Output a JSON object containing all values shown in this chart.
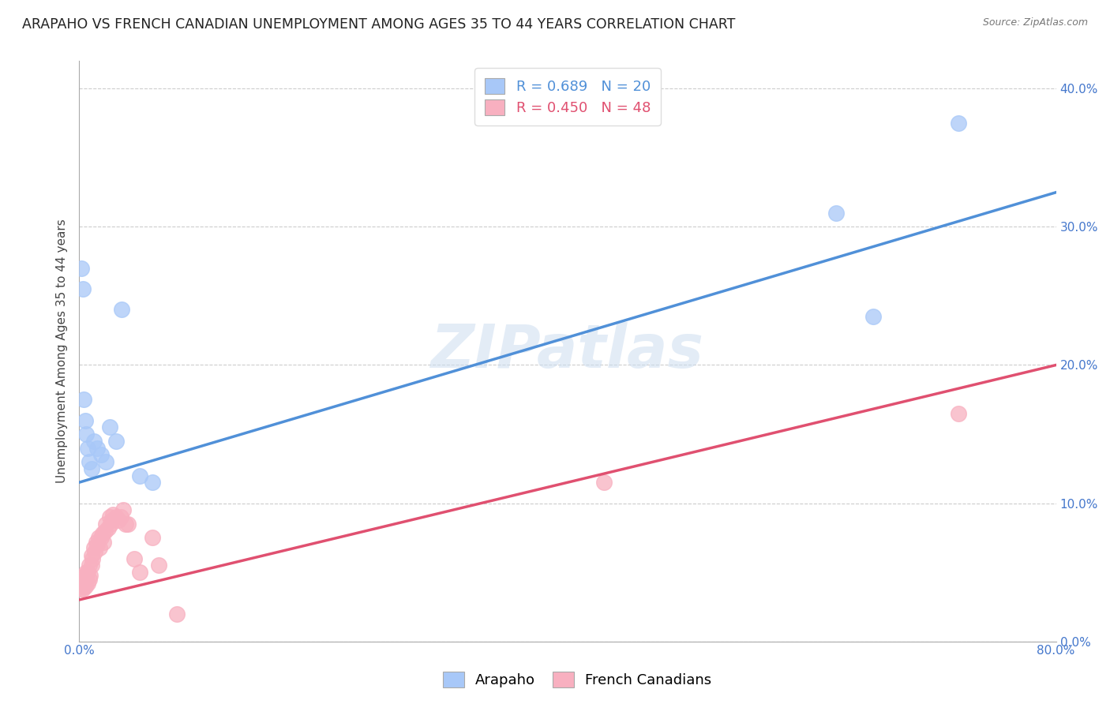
{
  "title": "ARAPAHO VS FRENCH CANADIAN UNEMPLOYMENT AMONG AGES 35 TO 44 YEARS CORRELATION CHART",
  "source": "Source: ZipAtlas.com",
  "ylabel": "Unemployment Among Ages 35 to 44 years",
  "xlim": [
    0.0,
    0.8
  ],
  "ylim": [
    0.0,
    0.42
  ],
  "xticks": [
    0.0,
    0.1,
    0.2,
    0.3,
    0.4,
    0.5,
    0.6,
    0.7,
    0.8
  ],
  "yticks": [
    0.0,
    0.1,
    0.2,
    0.3,
    0.4
  ],
  "xtick_labels": [
    "0.0%",
    "",
    "",
    "",
    "",
    "",
    "",
    "",
    "80.0%"
  ],
  "ytick_labels": [
    "0.0%",
    "10.0%",
    "20.0%",
    "30.0%",
    "40.0%"
  ],
  "arapaho_color": "#a8c8f8",
  "french_color": "#f8b0c0",
  "arapaho_line_color": "#5090d8",
  "french_line_color": "#e05070",
  "arapaho_R": 0.689,
  "arapaho_N": 20,
  "french_R": 0.45,
  "french_N": 48,
  "arapaho_x": [
    0.002,
    0.003,
    0.004,
    0.005,
    0.006,
    0.007,
    0.008,
    0.01,
    0.012,
    0.015,
    0.018,
    0.022,
    0.025,
    0.03,
    0.035,
    0.05,
    0.06,
    0.62,
    0.65,
    0.72
  ],
  "arapaho_y": [
    0.27,
    0.255,
    0.175,
    0.16,
    0.15,
    0.14,
    0.13,
    0.125,
    0.145,
    0.14,
    0.135,
    0.13,
    0.155,
    0.145,
    0.24,
    0.12,
    0.115,
    0.31,
    0.235,
    0.375
  ],
  "french_x": [
    0.001,
    0.002,
    0.002,
    0.003,
    0.003,
    0.004,
    0.004,
    0.005,
    0.005,
    0.006,
    0.006,
    0.007,
    0.007,
    0.008,
    0.008,
    0.009,
    0.01,
    0.01,
    0.011,
    0.012,
    0.013,
    0.014,
    0.015,
    0.016,
    0.017,
    0.018,
    0.019,
    0.02,
    0.021,
    0.022,
    0.024,
    0.025,
    0.026,
    0.027,
    0.028,
    0.03,
    0.032,
    0.034,
    0.036,
    0.038,
    0.04,
    0.045,
    0.05,
    0.06,
    0.065,
    0.08,
    0.43,
    0.72
  ],
  "french_y": [
    0.038,
    0.04,
    0.042,
    0.038,
    0.045,
    0.04,
    0.042,
    0.04,
    0.048,
    0.045,
    0.05,
    0.042,
    0.05,
    0.045,
    0.055,
    0.048,
    0.055,
    0.062,
    0.06,
    0.068,
    0.065,
    0.072,
    0.07,
    0.075,
    0.068,
    0.075,
    0.078,
    0.072,
    0.08,
    0.085,
    0.082,
    0.09,
    0.085,
    0.088,
    0.092,
    0.09,
    0.088,
    0.09,
    0.095,
    0.085,
    0.085,
    0.06,
    0.05,
    0.075,
    0.055,
    0.02,
    0.115,
    0.165
  ],
  "blue_line_x0": 0.0,
  "blue_line_y0": 0.115,
  "blue_line_x1": 0.8,
  "blue_line_y1": 0.325,
  "pink_line_x0": 0.0,
  "pink_line_y0": 0.03,
  "pink_line_x1": 0.8,
  "pink_line_y1": 0.2,
  "watermark": "ZIPatlas",
  "background_color": "#ffffff",
  "grid_color": "#cccccc",
  "title_fontsize": 12.5,
  "axis_fontsize": 11,
  "tick_fontsize": 11,
  "legend_fontsize": 13
}
